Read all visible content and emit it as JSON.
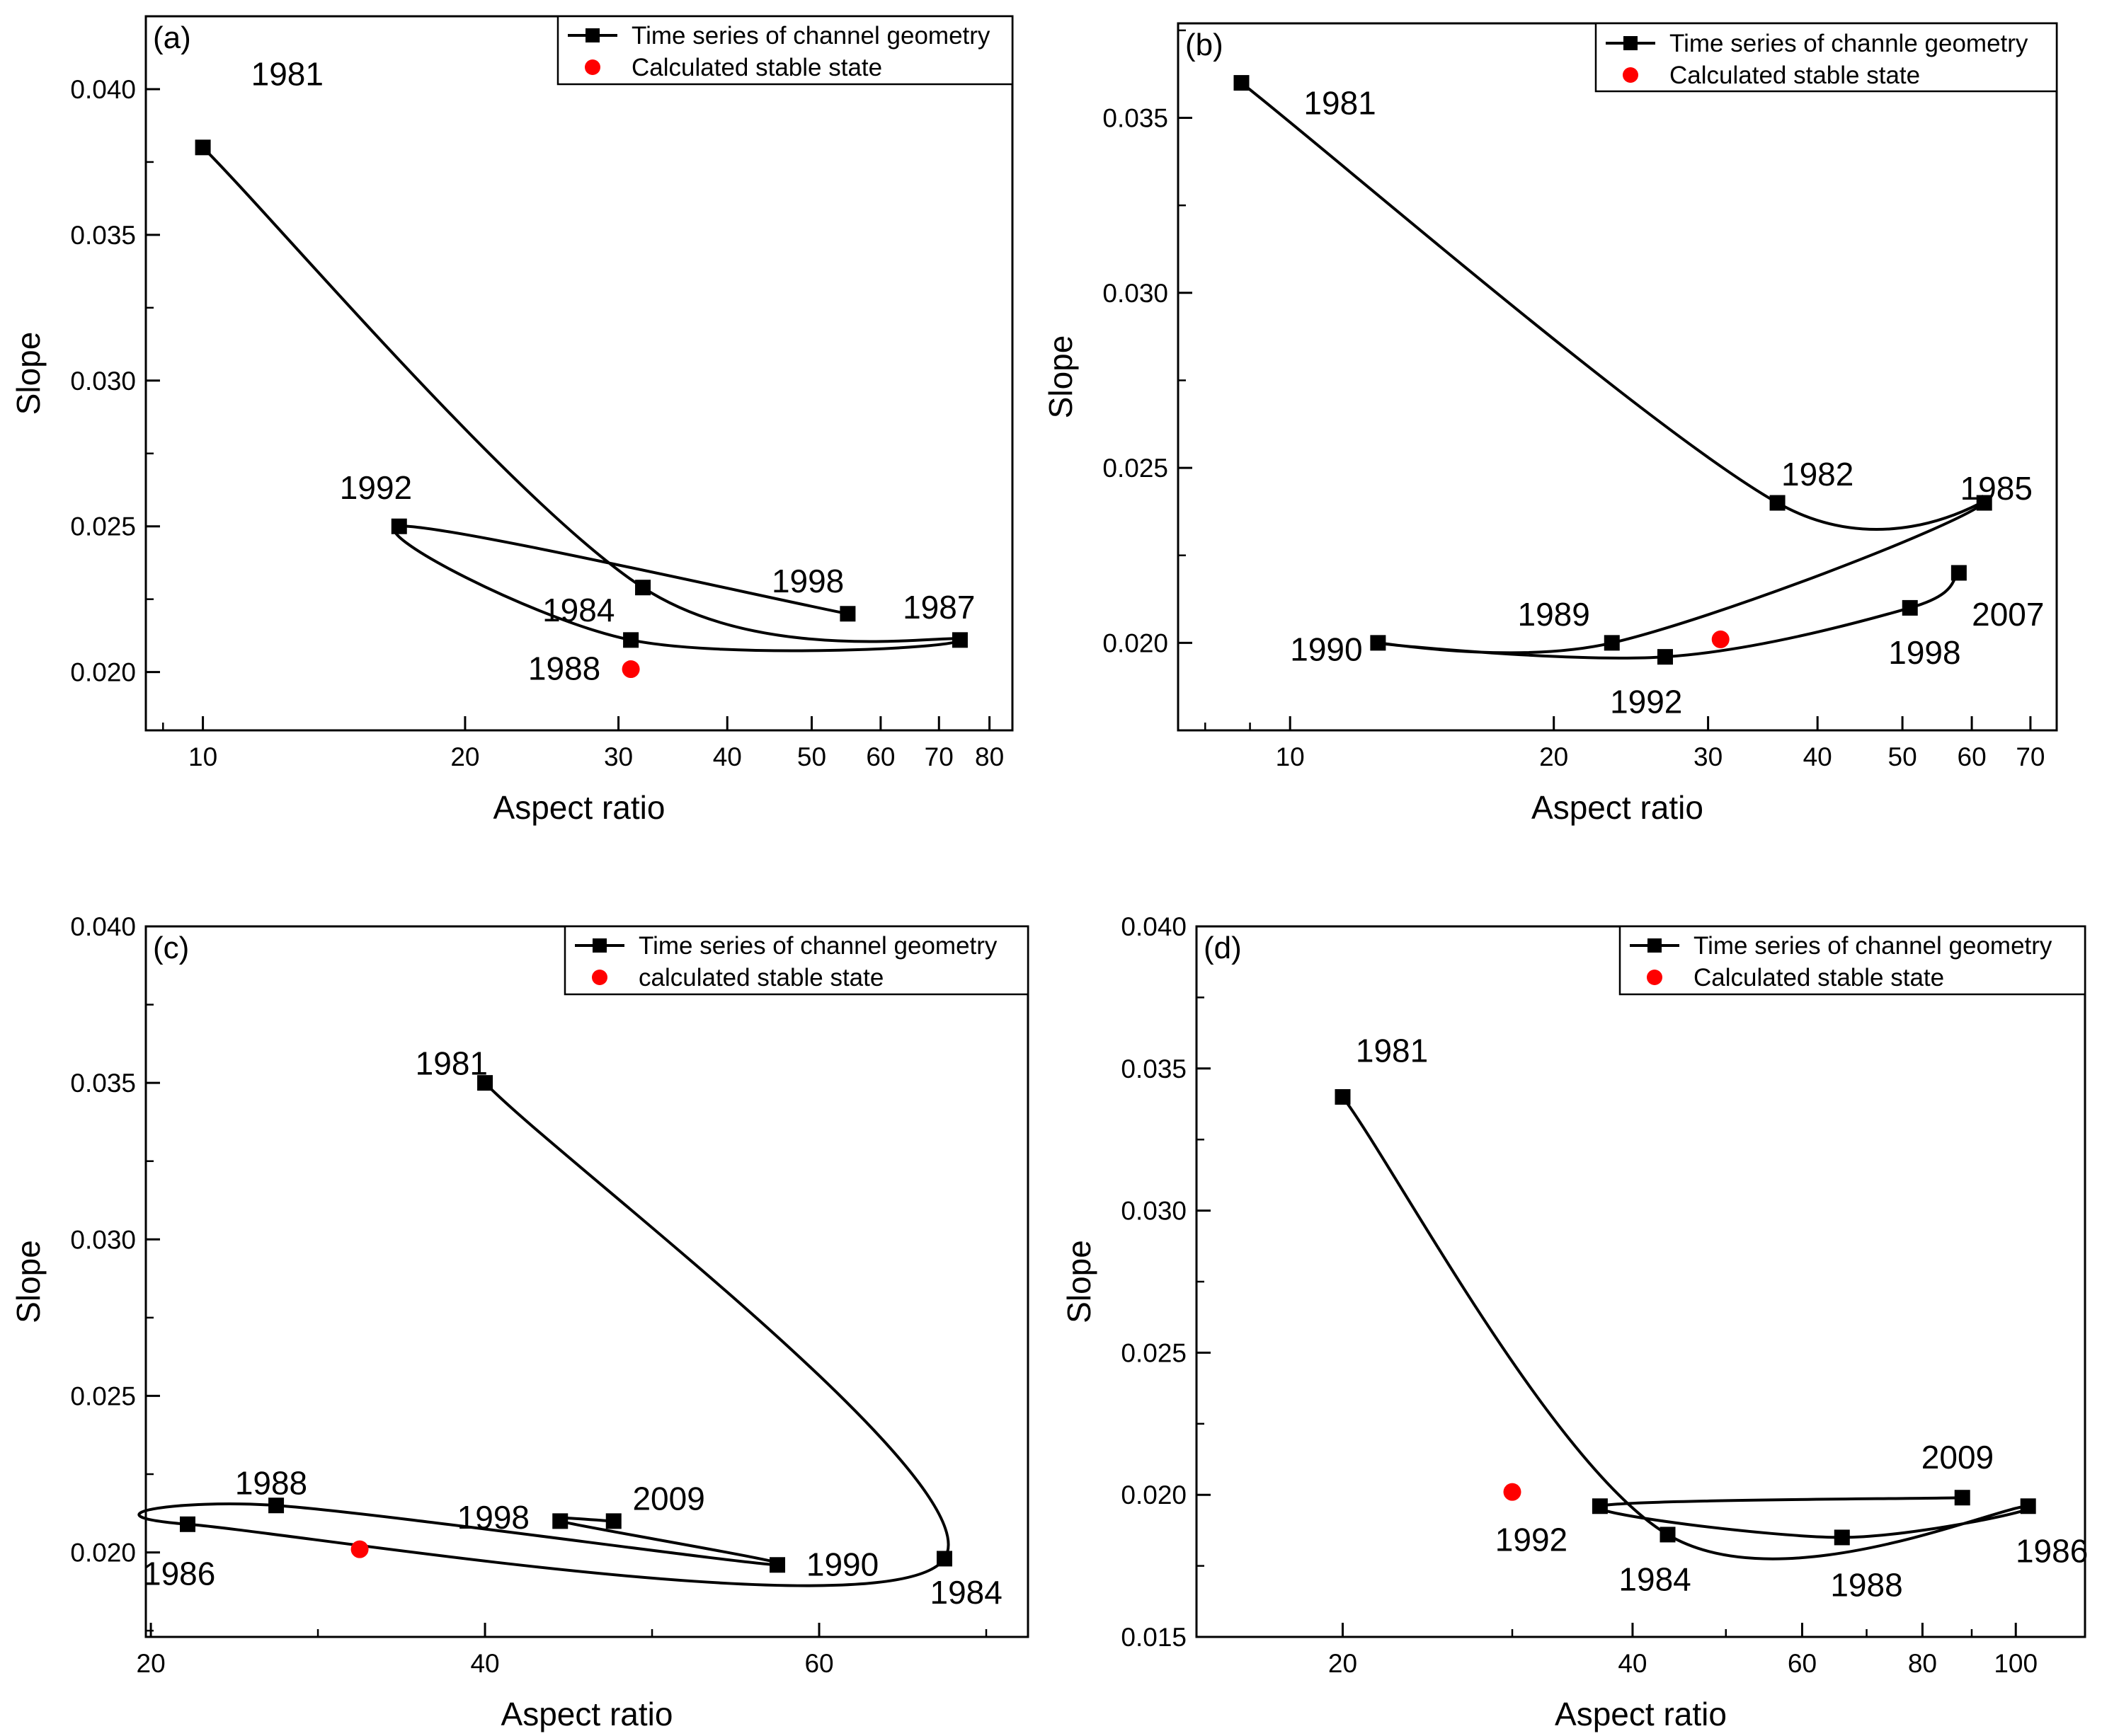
{
  "chart_data": [
    {
      "panel": "(a)",
      "type": "line",
      "xscale": "log",
      "xlabel": "Aspect ratio",
      "ylabel": "Slope",
      "xlim": [
        8.6,
        85
      ],
      "ylim": [
        0.018,
        0.0425
      ],
      "xticks": [
        {
          "v": 10,
          "l": "10"
        },
        {
          "v": 20,
          "l": "20"
        },
        {
          "v": 30,
          "l": "30"
        },
        {
          "v": 40,
          "l": "40"
        },
        {
          "v": 50,
          "l": "50"
        },
        {
          "v": 60,
          "l": "60"
        },
        {
          "v": 70,
          "l": "70"
        },
        {
          "v": 80,
          "l": "80"
        }
      ],
      "yticks": [
        {
          "v": 0.02,
          "l": "0.020"
        },
        {
          "v": 0.025,
          "l": "0.025"
        },
        {
          "v": 0.03,
          "l": "0.030"
        },
        {
          "v": 0.035,
          "l": "0.035"
        },
        {
          "v": 0.04,
          "l": "0.040"
        }
      ],
      "legend": [
        "Time series of channel geometry",
        "Calculated stable state"
      ],
      "legend_position": "top-right",
      "series": [
        {
          "name": "Time series of channel geometry",
          "points": [
            {
              "x": 10,
              "y": 0.038,
              "year": "1981"
            },
            {
              "x": 32,
              "y": 0.0229,
              "year": "1984"
            },
            {
              "x": 74,
              "y": 0.0211,
              "year": "1987"
            },
            {
              "x": 31,
              "y": 0.0211,
              "year": "1988"
            },
            {
              "x": 16.8,
              "y": 0.025,
              "year": "1992"
            },
            {
              "x": 55,
              "y": 0.022,
              "year": "1998"
            }
          ]
        }
      ],
      "stable_state": {
        "x": 31,
        "y": 0.0201
      },
      "annotations": [
        {
          "text": "1981",
          "x": 12.5,
          "y": 0.0405
        },
        {
          "text": "1992",
          "x": 15.8,
          "y": 0.0263
        },
        {
          "text": "1998",
          "x": 49.5,
          "y": 0.0231
        },
        {
          "text": "1984",
          "x": 27,
          "y": 0.0221
        },
        {
          "text": "1987",
          "x": 70,
          "y": 0.0222
        },
        {
          "text": "1988",
          "x": 26,
          "y": 0.0201
        }
      ]
    },
    {
      "panel": "(b)",
      "type": "line",
      "xscale": "log",
      "xlabel": "Aspect ratio",
      "ylabel": "Slope",
      "xlim": [
        7.45,
        75
      ],
      "ylim": [
        0.0175,
        0.0377
      ],
      "xticks": [
        {
          "v": 10,
          "l": "10"
        },
        {
          "v": 20,
          "l": "20"
        },
        {
          "v": 30,
          "l": "30"
        },
        {
          "v": 40,
          "l": "40"
        },
        {
          "v": 50,
          "l": "50"
        },
        {
          "v": 60,
          "l": "60"
        },
        {
          "v": 70,
          "l": "70"
        }
      ],
      "yticks": [
        {
          "v": 0.02,
          "l": "0.020"
        },
        {
          "v": 0.025,
          "l": "0.025"
        },
        {
          "v": 0.03,
          "l": "0.030"
        },
        {
          "v": 0.035,
          "l": "0.035"
        }
      ],
      "legend": [
        "Time series of channle geometry",
        "Calculated stable state"
      ],
      "legend_position": "top-right",
      "series": [
        {
          "name": "Time series of channle geometry",
          "points": [
            {
              "x": 8.8,
              "y": 0.036,
              "year": "1981"
            },
            {
              "x": 36,
              "y": 0.024,
              "year": "1982"
            },
            {
              "x": 62,
              "y": 0.024,
              "year": "1985"
            },
            {
              "x": 23.3,
              "y": 0.02,
              "year": "1989"
            },
            {
              "x": 12.6,
              "y": 0.02,
              "year": "1990"
            },
            {
              "x": 26.8,
              "y": 0.0196,
              "year": "1992"
            },
            {
              "x": 51,
              "y": 0.021,
              "year": "1998"
            },
            {
              "x": 58,
              "y": 0.022,
              "year": "2007"
            }
          ]
        }
      ],
      "stable_state": {
        "x": 31,
        "y": 0.0201
      },
      "annotations": [
        {
          "text": "1981",
          "x": 11.4,
          "y": 0.0354
        },
        {
          "text": "1982",
          "x": 40,
          "y": 0.0248
        },
        {
          "text": "1985",
          "x": 64,
          "y": 0.0244
        },
        {
          "text": "1989",
          "x": 20,
          "y": 0.0208
        },
        {
          "text": "1990",
          "x": 11,
          "y": 0.0198
        },
        {
          "text": "1992",
          "x": 25.5,
          "y": 0.0183
        },
        {
          "text": "1998",
          "x": 53,
          "y": 0.0197
        },
        {
          "text": "2007",
          "x": 66,
          "y": 0.0208
        }
      ]
    },
    {
      "panel": "(c)",
      "type": "line",
      "xscale": "linear",
      "xlabel": "Aspect ratio",
      "ylabel": "Slope",
      "xlim": [
        19.7,
        72.5
      ],
      "ylim": [
        0.0173,
        0.04
      ],
      "xticks": [
        {
          "v": 20,
          "l": "20"
        },
        {
          "v": 40,
          "l": "40"
        },
        {
          "v": 60,
          "l": "60"
        }
      ],
      "yticks": [
        {
          "v": 0.02,
          "l": "0.020"
        },
        {
          "v": 0.025,
          "l": "0.025"
        },
        {
          "v": 0.03,
          "l": "0.030"
        },
        {
          "v": 0.035,
          "l": "0.035"
        },
        {
          "v": 0.04,
          "l": "0.040"
        }
      ],
      "legend": [
        "Time series of channel geometry",
        "calculated stable state"
      ],
      "legend_position": "top-right",
      "series": [
        {
          "name": "Time series of channel geometry",
          "points": [
            {
              "x": 40,
              "y": 0.035,
              "year": "1981"
            },
            {
              "x": 67.5,
              "y": 0.0198,
              "year": "1984"
            },
            {
              "x": 22.2,
              "y": 0.0209,
              "year": "1986"
            },
            {
              "x": 27.5,
              "y": 0.0215,
              "year": "1988"
            },
            {
              "x": 57.5,
              "y": 0.0196,
              "year": "1990"
            },
            {
              "x": 44.5,
              "y": 0.021,
              "year": "1998"
            },
            {
              "x": 47.7,
              "y": 0.021,
              "year": "2009"
            }
          ]
        }
      ],
      "stable_state": {
        "x": 32.5,
        "y": 0.0201
      },
      "annotations": [
        {
          "text": "1981",
          "x": 38,
          "y": 0.0356
        },
        {
          "text": "1984",
          "x": 68.8,
          "y": 0.0187
        },
        {
          "text": "1986",
          "x": 21.7,
          "y": 0.0193
        },
        {
          "text": "1988",
          "x": 27.2,
          "y": 0.0222
        },
        {
          "text": "1990",
          "x": 61.4,
          "y": 0.0196
        },
        {
          "text": "1998",
          "x": 40.5,
          "y": 0.0211
        },
        {
          "text": "2009",
          "x": 51,
          "y": 0.0217
        }
      ]
    },
    {
      "panel": "(d)",
      "type": "line",
      "xscale": "log",
      "xlabel": "Aspect ratio",
      "ylabel": "Slope",
      "xlim": [
        14.1,
        118
      ],
      "ylim": [
        0.015,
        0.04
      ],
      "xticks": [
        {
          "v": 20,
          "l": "20"
        },
        {
          "v": 40,
          "l": "40"
        },
        {
          "v": 60,
          "l": "60"
        },
        {
          "v": 80,
          "l": "80"
        },
        {
          "v": 100,
          "l": "100"
        }
      ],
      "yticks": [
        {
          "v": 0.015,
          "l": "0.015"
        },
        {
          "v": 0.02,
          "l": "0.020"
        },
        {
          "v": 0.025,
          "l": "0.025"
        },
        {
          "v": 0.03,
          "l": "0.030"
        },
        {
          "v": 0.035,
          "l": "0.035"
        },
        {
          "v": 0.04,
          "l": "0.040"
        }
      ],
      "legend": [
        "Time series of channel geometry",
        "Calculated stable state"
      ],
      "legend_position": "top-right",
      "series": [
        {
          "name": "Time series of channel geometry",
          "points": [
            {
              "x": 20,
              "y": 0.034,
              "year": "1981"
            },
            {
              "x": 43.5,
              "y": 0.0186,
              "year": "1984"
            },
            {
              "x": 103,
              "y": 0.0196,
              "year": "1986"
            },
            {
              "x": 66,
              "y": 0.0185,
              "year": "1988"
            },
            {
              "x": 37,
              "y": 0.0196,
              "year": "1992"
            },
            {
              "x": 88,
              "y": 0.0199,
              "year": "2009"
            }
          ]
        }
      ],
      "stable_state": {
        "x": 30,
        "y": 0.0201
      },
      "annotations": [
        {
          "text": "1981",
          "x": 22.5,
          "y": 0.0356
        },
        {
          "text": "1984",
          "x": 42.2,
          "y": 0.017
        },
        {
          "text": "1986",
          "x": 109,
          "y": 0.018
        },
        {
          "text": "1988",
          "x": 70,
          "y": 0.0168
        },
        {
          "text": "1992",
          "x": 31.4,
          "y": 0.0184
        },
        {
          "text": "2009",
          "x": 87,
          "y": 0.0213
        }
      ]
    }
  ]
}
